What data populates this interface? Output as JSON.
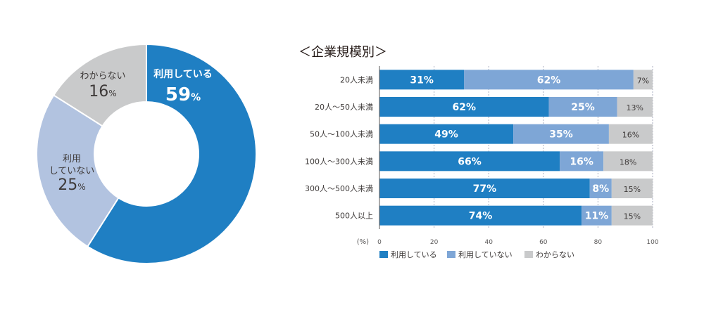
{
  "chart_data": [
    {
      "type": "pie",
      "variant": "donut",
      "categories": [
        "利用している",
        "利用していない",
        "わからない"
      ],
      "values": [
        59,
        25,
        16
      ],
      "labels": [
        {
          "lines": [
            "利用している"
          ],
          "value": "59",
          "unit": "%"
        },
        {
          "lines": [
            "利用",
            "していない"
          ],
          "value": "25",
          "unit": "%"
        },
        {
          "lines": [
            "わからない"
          ],
          "value": "16",
          "unit": "%"
        }
      ],
      "colors": [
        "#1f7fc3",
        "#b2c3e0",
        "#c9cacb"
      ]
    },
    {
      "type": "bar",
      "orientation": "horizontal",
      "stacked": true,
      "title": "＜企業規模別＞",
      "categories": [
        "20人未満",
        "20人～50人未満",
        "50人～100人未満",
        "100人～300人未満",
        "300人～500人未満",
        "500人以上"
      ],
      "series": [
        {
          "name": "利用している",
          "values": [
            31,
            62,
            49,
            66,
            77,
            74
          ],
          "labels": [
            "31%",
            "62%",
            "49%",
            "66%",
            "77%",
            "74%"
          ]
        },
        {
          "name": "利用していない",
          "values": [
            62,
            25,
            35,
            16,
            8,
            11
          ],
          "labels": [
            "62%",
            "25%",
            "35%",
            "16%",
            "8%",
            "11%"
          ]
        },
        {
          "name": "わからない",
          "values": [
            7,
            13,
            16,
            18,
            15,
            15
          ],
          "labels": [
            "7%",
            "13%",
            "16%",
            "18%",
            "15%",
            "15%"
          ]
        }
      ],
      "colors": [
        "#1f7fc3",
        "#7ea6d6",
        "#c9cacb"
      ],
      "axis_unit": "(%)",
      "xlim": [
        0,
        100
      ],
      "xticks": [
        "0",
        "20",
        "40",
        "60",
        "80",
        "100"
      ],
      "grid": true,
      "legend_position": "bottom"
    }
  ]
}
